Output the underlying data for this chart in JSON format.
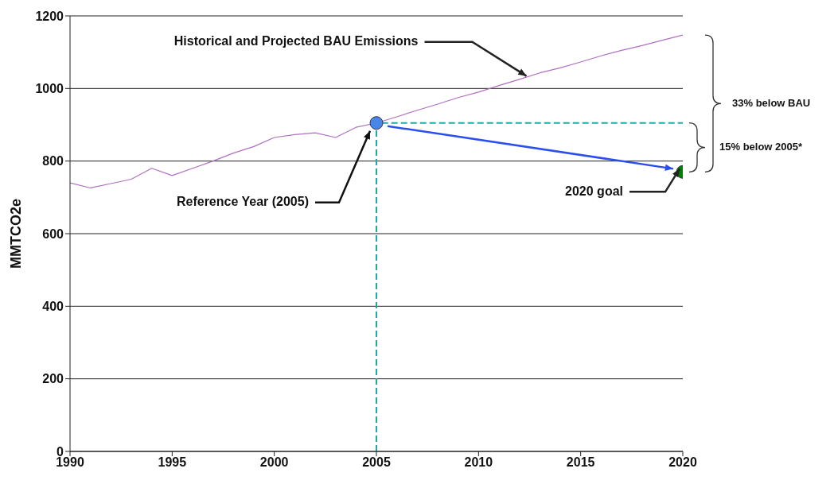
{
  "chart_data": {
    "type": "line",
    "ylabel": "MMTCO2e",
    "xlim": [
      1990,
      2020
    ],
    "xticks": [
      1990,
      1995,
      2000,
      2005,
      2010,
      2015,
      2020
    ],
    "ylim": [
      0,
      1200
    ],
    "yticks": [
      0,
      200,
      400,
      600,
      800,
      1000,
      1200
    ],
    "grid": "y",
    "series": [
      {
        "color": "#b070c0",
        "x": [
          1990,
          1991,
          1992,
          1993,
          1994,
          1995,
          1996,
          1997,
          1998,
          1999,
          2000,
          2001,
          2002,
          2003,
          2004,
          2005,
          2006,
          2007,
          2008,
          2009,
          2010,
          2011,
          2012,
          2013,
          2014,
          2015,
          2016,
          2017,
          2018,
          2019,
          2020
        ],
        "values": [
          740,
          726,
          738,
          750,
          780,
          760,
          780,
          800,
          822,
          840,
          865,
          873,
          878,
          865,
          893,
          905,
          922,
          940,
          957,
          975,
          990,
          1008,
          1025,
          1043,
          1057,
          1073,
          1090,
          1105,
          1118,
          1133,
          1147
        ]
      },
      {
        "type": "line",
        "color": "#20a8a8",
        "line_style": "dashed",
        "x": [
          2005,
          2005,
          2020
        ],
        "values": [
          0,
          905,
          905
        ]
      },
      {
        "type": "scatter",
        "color": "#4a86e8",
        "marker": "circle",
        "x": [
          2005
        ],
        "values": [
          905
        ]
      },
      {
        "type": "scatter",
        "color": "#008000",
        "marker": "circle",
        "x": [
          2020
        ],
        "values": [
          770
        ]
      }
    ],
    "annotations": [
      {
        "text": "Historical and Projected BAU Emissions",
        "x": 2012.5,
        "y": 1030
      },
      "Reference Year (2005)",
      {
        "text": "2020 goal",
        "x": 2020,
        "y": 770
      },
      "33% below BAU",
      "15% below 2005*"
    ]
  }
}
